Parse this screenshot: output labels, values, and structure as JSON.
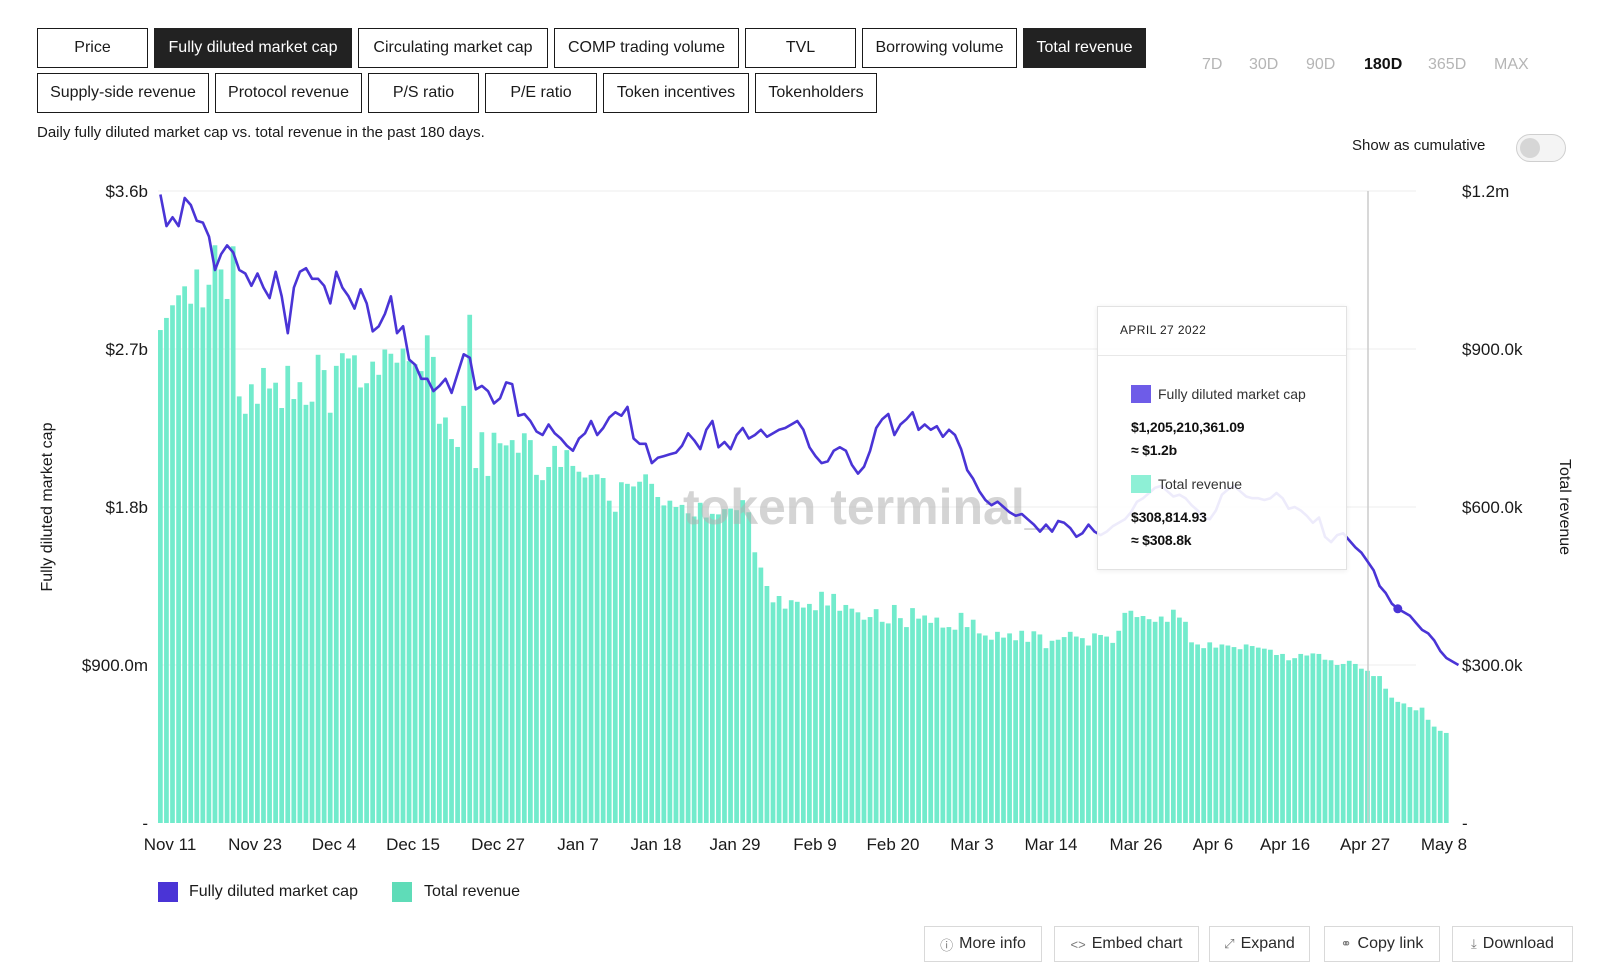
{
  "metric_tabs": [
    {
      "label": "Price",
      "active": false
    },
    {
      "label": "Fully diluted market cap",
      "active": true
    },
    {
      "label": "Circulating market cap",
      "active": false
    },
    {
      "label": "COMP trading volume",
      "active": false
    },
    {
      "label": "TVL",
      "active": false
    },
    {
      "label": "Borrowing volume",
      "active": false
    },
    {
      "label": "Total revenue",
      "active": true
    },
    {
      "label": "Supply-side revenue",
      "active": false
    },
    {
      "label": "Protocol revenue",
      "active": false
    },
    {
      "label": "P/S ratio",
      "active": false
    },
    {
      "label": "P/E ratio",
      "active": false
    },
    {
      "label": "Token incentives",
      "active": false
    },
    {
      "label": "Tokenholders",
      "active": false
    }
  ],
  "time_ranges": [
    {
      "label": "7D",
      "active": false
    },
    {
      "label": "30D",
      "active": false
    },
    {
      "label": "90D",
      "active": false
    },
    {
      "label": "180D",
      "active": true
    },
    {
      "label": "365D",
      "active": false
    },
    {
      "label": "MAX",
      "active": false
    }
  ],
  "subtitle": "Daily fully diluted market cap vs. total revenue in the past 180 days.",
  "cumulative_toggle": {
    "label": "Show as cumulative",
    "on": false
  },
  "watermark": "token terminal_",
  "tooltip": {
    "date": "APRIL 27 2022",
    "series": [
      {
        "name": "Fully diluted market cap",
        "value": "$1,205,210,361.09",
        "approx": "≈ $1.2b"
      },
      {
        "name": "Total revenue",
        "value": "$308,814.93",
        "approx": "≈ $308.8k"
      }
    ]
  },
  "legend": [
    {
      "label": "Fully diluted market cap"
    },
    {
      "label": "Total revenue"
    }
  ],
  "footer_buttons": [
    {
      "label": "More info",
      "icon": "info-icon"
    },
    {
      "label": "Embed chart",
      "icon": "code-icon"
    },
    {
      "label": "Expand",
      "icon": "expand-icon"
    },
    {
      "label": "Copy link",
      "icon": "link-icon"
    },
    {
      "label": "Download",
      "icon": "download-icon"
    }
  ],
  "colors": {
    "market_cap_line": "#4a34d6",
    "revenue_bars": "#72ebcc",
    "active_tab_bg": "#222222",
    "grid": "#ececec"
  },
  "chart_data": {
    "type": "bar+line",
    "x_tick_labels": [
      "Nov 11",
      "Nov 23",
      "Dec 4",
      "Dec 15",
      "Dec 27",
      "Jan 7",
      "Jan 18",
      "Jan 29",
      "Feb 9",
      "Feb 20",
      "Mar 3",
      "Mar 14",
      "Mar 26",
      "Apr 6",
      "Apr 16",
      "Apr 27",
      "May 8"
    ],
    "y_left": {
      "label": "Fully diluted market cap",
      "ticks": [
        "$3.6b",
        "$2.7b",
        "$1.8b",
        "$900.0m",
        "-"
      ],
      "range": [
        0,
        3600000000
      ]
    },
    "y_right": {
      "label": "Total revenue",
      "ticks": [
        "$1.2m",
        "$900.0k",
        "$600.0k",
        "$300.0k",
        "-"
      ],
      "range": [
        0,
        1200000
      ]
    },
    "grid": true,
    "highlight_date": "Apr 27",
    "series": [
      {
        "name": "Total revenue",
        "type": "bar",
        "axis": "right",
        "values_k": [
          936,
          959,
          983,
          1002,
          1019,
          986,
          1051,
          979,
          1022,
          1097,
          1051,
          995,
          1095,
          810,
          777,
          833,
          796,
          864,
          825,
          836,
          788,
          868,
          805,
          837,
          794,
          800,
          889,
          860,
          779,
          868,
          892,
          882,
          888,
          827,
          835,
          876,
          851,
          899,
          891,
          874,
          901,
          877,
          871,
          858,
          926,
          885,
          758,
          770,
          729,
          714,
          792,
          965,
          674,
          742,
          659,
          741,
          721,
          717,
          727,
          703,
          740,
          727,
          661,
          651,
          676,
          716,
          676,
          708,
          678,
          667,
          656,
          661,
          662,
          655,
          612,
          591,
          647,
          644,
          639,
          648,
          662,
          644,
          619,
          603,
          612,
          600,
          604,
          588,
          582,
          608,
          580,
          587,
          586,
          596,
          597,
          594,
          613,
          590,
          514,
          485,
          450,
          419,
          431,
          407,
          423,
          420,
          409,
          416,
          404,
          439,
          413,
          435,
          403,
          414,
          407,
          400,
          386,
          391,
          406,
          382,
          379,
          414,
          389,
          372,
          408,
          388,
          394,
          380,
          390,
          371,
          372,
          367,
          399,
          372,
          386,
          360,
          356,
          348,
          363,
          352,
          360,
          347,
          365,
          344,
          364,
          358,
          332,
          346,
          348,
          353,
          363,
          354,
          351,
          337,
          360,
          357,
          354,
          342,
          365,
          399,
          403,
          391,
          393,
          387,
          382,
          392,
          382,
          405,
          390,
          382,
          343,
          339,
          332,
          343,
          333,
          339,
          337,
          334,
          330,
          339,
          336,
          333,
          331,
          329,
          319,
          321,
          309,
          313,
          321,
          318,
          322,
          321,
          310,
          309,
          300,
          302,
          308,
          302,
          293,
          289,
          279,
          279,
          255,
          238,
          230,
          227,
          220,
          214,
          219,
          196,
          183,
          175,
          171
        ]
      },
      {
        "name": "Fully diluted market cap",
        "type": "line",
        "axis": "left",
        "values_b": [
          3.58,
          3.4,
          3.45,
          3.4,
          3.56,
          3.52,
          3.43,
          3.42,
          3.34,
          3.15,
          3.24,
          3.29,
          3.25,
          3.15,
          3.13,
          3.06,
          3.13,
          3.05,
          2.99,
          3.14,
          3.0,
          2.79,
          3.05,
          3.14,
          3.16,
          3.1,
          3.1,
          3.06,
          2.96,
          3.14,
          3.05,
          3.0,
          2.93,
          3.04,
          2.96,
          2.8,
          2.83,
          2.9,
          3.0,
          2.79,
          2.83,
          2.64,
          2.61,
          2.53,
          2.53,
          2.46,
          2.49,
          2.53,
          2.45,
          2.56,
          2.67,
          2.65,
          2.47,
          2.49,
          2.46,
          2.39,
          2.42,
          2.51,
          2.5,
          2.32,
          2.33,
          2.29,
          2.23,
          2.21,
          2.27,
          2.22,
          2.19,
          2.15,
          2.12,
          2.19,
          2.22,
          2.29,
          2.21,
          2.25,
          2.31,
          2.34,
          2.32,
          2.37,
          2.19,
          2.16,
          2.16,
          2.05,
          2.08,
          2.09,
          2.1,
          2.11,
          2.15,
          2.22,
          2.18,
          2.13,
          2.24,
          2.29,
          2.14,
          2.17,
          2.13,
          2.21,
          2.25,
          2.19,
          2.21,
          2.24,
          2.2,
          2.22,
          2.24,
          2.25,
          2.27,
          2.29,
          2.24,
          2.14,
          2.09,
          2.05,
          2.06,
          2.12,
          2.14,
          2.12,
          2.04,
          1.99,
          2.03,
          2.12,
          2.25,
          2.3,
          2.33,
          2.21,
          2.27,
          2.3,
          2.34,
          2.24,
          2.27,
          2.24,
          2.26,
          2.2,
          2.24,
          2.21,
          2.13,
          2.01,
          1.96,
          1.89,
          1.84,
          1.81,
          1.83,
          1.8,
          1.77,
          1.75,
          1.76,
          1.73,
          1.7,
          1.66,
          1.7,
          1.66,
          1.72,
          1.71,
          1.68,
          1.63,
          1.65,
          1.7,
          1.66,
          1.64,
          1.66,
          1.69,
          1.71,
          1.73,
          1.77,
          1.83,
          1.85,
          1.88,
          1.91,
          1.92,
          1.89,
          1.86,
          1.87,
          1.85,
          1.81,
          1.78,
          1.74,
          1.73,
          1.78,
          1.87,
          1.9,
          1.92,
          1.89,
          1.86,
          1.85,
          1.85,
          1.84,
          1.85,
          1.88,
          1.85,
          1.79,
          1.8,
          1.78,
          1.75,
          1.71,
          1.74,
          1.63,
          1.6,
          1.64,
          1.65,
          1.61,
          1.57,
          1.54,
          1.49,
          1.44,
          1.35,
          1.31,
          1.25,
          1.22,
          1.2,
          1.18,
          1.14,
          1.1,
          1.08,
          1.04,
          0.98,
          0.94,
          0.92,
          0.9
        ]
      }
    ]
  }
}
